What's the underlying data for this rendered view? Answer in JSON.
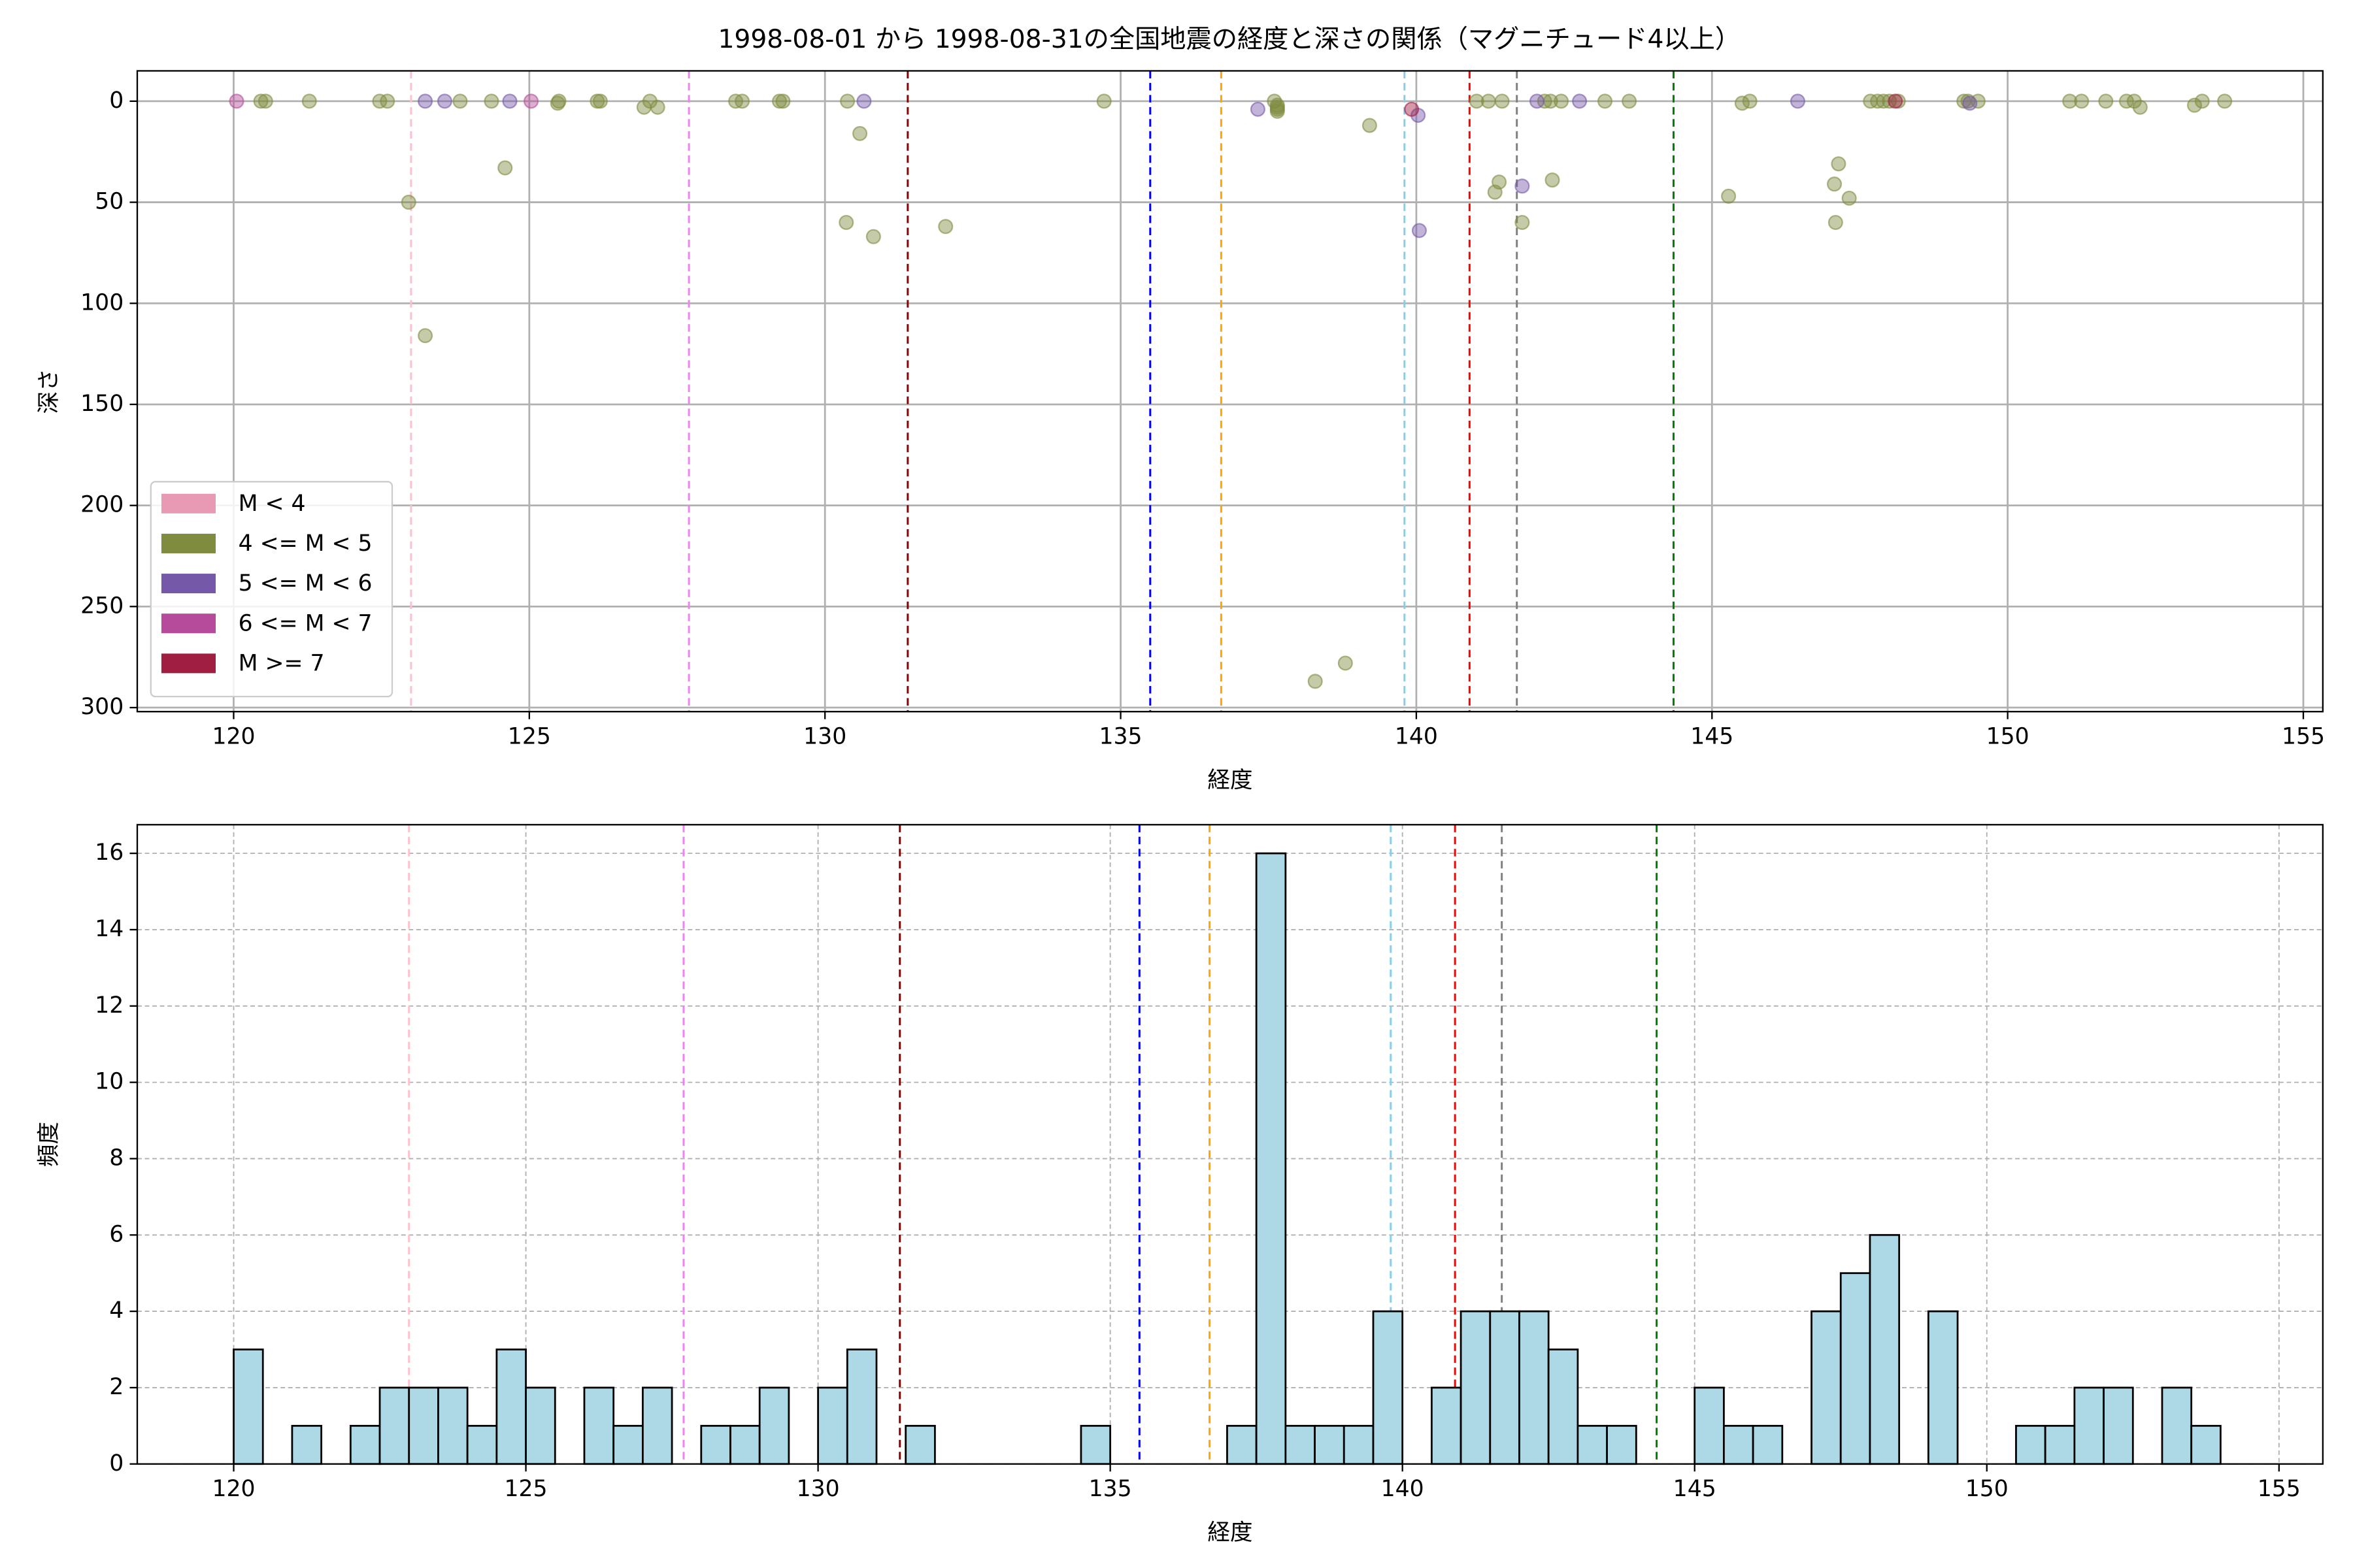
{
  "chart_data": [
    {
      "type": "scatter",
      "title": "1998-08-01 から 1998-08-31の全国地震の経度と深さの関係（マグニチュード4以上）",
      "x_label": "経度",
      "y_label": "深さ",
      "xlim": [
        118.37,
        155.33
      ],
      "ylim": [
        -15,
        302
      ],
      "invert_y": true,
      "xticks": [
        120,
        125,
        130,
        135,
        140,
        145,
        150,
        155
      ],
      "yticks": [
        0,
        50,
        100,
        150,
        200,
        250,
        300
      ],
      "grid": true,
      "legend": "lower left",
      "series": [
        {
          "name": "M < 4",
          "color": "#e89ab5",
          "x": [],
          "values": []
        },
        {
          "name": "4 <= M < 5",
          "color": "#7f8c3f",
          "x": [
            120.46,
            120.54,
            121.28,
            122.47,
            122.6,
            122.96,
            123.24,
            123.83,
            124.36,
            124.59,
            125.48,
            125.5,
            126.15,
            126.2,
            126.94,
            127.04,
            127.17,
            128.49,
            128.6,
            129.23,
            129.29,
            130.38,
            130.36,
            130.59,
            130.82,
            132.04,
            134.72,
            137.6,
            137.65,
            137.65,
            137.65,
            137.65,
            139.21,
            138.29,
            138.8,
            141.02,
            141.22,
            141.45,
            141.33,
            141.4,
            141.79,
            142.17,
            142.27,
            142.45,
            142.3,
            143.19,
            143.6,
            145.28,
            145.51,
            145.64,
            147.07,
            147.14,
            147.32,
            147.09,
            147.68,
            147.8,
            147.9,
            148.0,
            148.15,
            149.26,
            149.33,
            149.5,
            151.05,
            151.25,
            151.66,
            152.01,
            152.14,
            152.24,
            153.16,
            153.29,
            153.67
          ],
          "values": [
            0,
            0,
            0,
            0,
            0,
            50,
            116,
            0,
            0,
            33,
            1,
            0,
            0,
            0,
            3,
            0,
            3,
            0,
            0,
            0,
            0,
            0,
            60,
            16,
            67,
            62,
            0,
            0,
            2,
            3,
            4,
            5,
            12,
            287,
            278,
            0,
            0,
            0,
            45,
            40,
            60,
            0,
            0,
            0,
            39,
            0,
            0,
            47,
            1,
            0,
            41,
            31,
            48,
            60,
            0,
            0,
            0,
            0,
            0,
            0,
            0,
            0,
            0,
            0,
            0,
            0,
            0,
            3,
            2,
            0,
            0
          ]
        },
        {
          "name": "5 <= M < 6",
          "color": "#7559a8",
          "x": [
            123.24,
            123.57,
            124.67,
            130.66,
            137.32,
            140.03,
            140.05,
            141.79,
            142.04,
            142.76,
            146.45,
            149.36
          ],
          "values": [
            0,
            0,
            0,
            0,
            4,
            7,
            64,
            42,
            0,
            0,
            0,
            1
          ]
        },
        {
          "name": "6 <= M < 7",
          "color": "#b54b9a",
          "x": [
            120.05,
            125.03
          ],
          "values": [
            0,
            0
          ]
        },
        {
          "name": "M >= 7",
          "color": "#a01e42",
          "x": [
            139.92,
            148.1
          ],
          "values": [
            4,
            0
          ]
        }
      ],
      "reference_lines": [
        {
          "x": 123.0,
          "color": "pink"
        },
        {
          "x": 127.7,
          "color": "violet"
        },
        {
          "x": 131.4,
          "color": "darkred"
        },
        {
          "x": 135.5,
          "color": "blue"
        },
        {
          "x": 136.7,
          "color": "orange"
        },
        {
          "x": 139.8,
          "color": "skyblue"
        },
        {
          "x": 140.9,
          "color": "red"
        },
        {
          "x": 141.7,
          "color": "gray"
        },
        {
          "x": 144.35,
          "color": "green"
        }
      ]
    },
    {
      "type": "histogram",
      "x_label": "経度",
      "y_label": "頻度",
      "xlim": [
        118.35,
        155.75
      ],
      "ylim": [
        0,
        16.75
      ],
      "xticks": [
        120,
        125,
        130,
        135,
        140,
        145,
        150,
        155
      ],
      "yticks": [
        0,
        2,
        4,
        6,
        8,
        10,
        12,
        14,
        16
      ],
      "grid": true,
      "color": "#add8e6",
      "bins": [
        120,
        120.5,
        121,
        121.5,
        122,
        122.5,
        123,
        123.5,
        124,
        124.5,
        125,
        125.5,
        126,
        126.5,
        127,
        127.5,
        128,
        128.5,
        129,
        129.5,
        130,
        130.5,
        131,
        131.5,
        132,
        132.5,
        133,
        133.5,
        134,
        134.5,
        135,
        135.5,
        136,
        136.5,
        137,
        137.5,
        138,
        138.5,
        139,
        139.5,
        140,
        140.5,
        141,
        141.5,
        142,
        142.5,
        143,
        143.5,
        144,
        144.5,
        145,
        145.5,
        146,
        146.5,
        147,
        147.5,
        148,
        148.5,
        149,
        149.5,
        150,
        150.5,
        151,
        151.5,
        152,
        152.5,
        153,
        153.5,
        154
      ],
      "values": [
        3,
        0,
        1,
        0,
        1,
        2,
        2,
        2,
        1,
        3,
        2,
        0,
        2,
        1,
        2,
        0,
        1,
        1,
        2,
        0,
        2,
        3,
        0,
        1,
        0,
        0,
        0,
        0,
        0,
        1,
        0,
        0,
        0,
        0,
        1,
        16,
        1,
        1,
        1,
        4,
        0,
        2,
        4,
        4,
        4,
        3,
        1,
        1,
        0,
        0,
        2,
        1,
        1,
        0,
        4,
        5,
        6,
        0,
        4,
        0,
        0,
        1,
        1,
        2,
        2,
        0,
        2,
        1
      ],
      "reference_lines": [
        {
          "x": 123.0,
          "color": "pink"
        },
        {
          "x": 127.7,
          "color": "violet"
        },
        {
          "x": 131.4,
          "color": "darkred"
        },
        {
          "x": 135.5,
          "color": "blue"
        },
        {
          "x": 136.7,
          "color": "orange"
        },
        {
          "x": 139.8,
          "color": "skyblue"
        },
        {
          "x": 140.9,
          "color": "red"
        },
        {
          "x": 141.7,
          "color": "gray"
        },
        {
          "x": 144.35,
          "color": "green"
        }
      ]
    }
  ]
}
